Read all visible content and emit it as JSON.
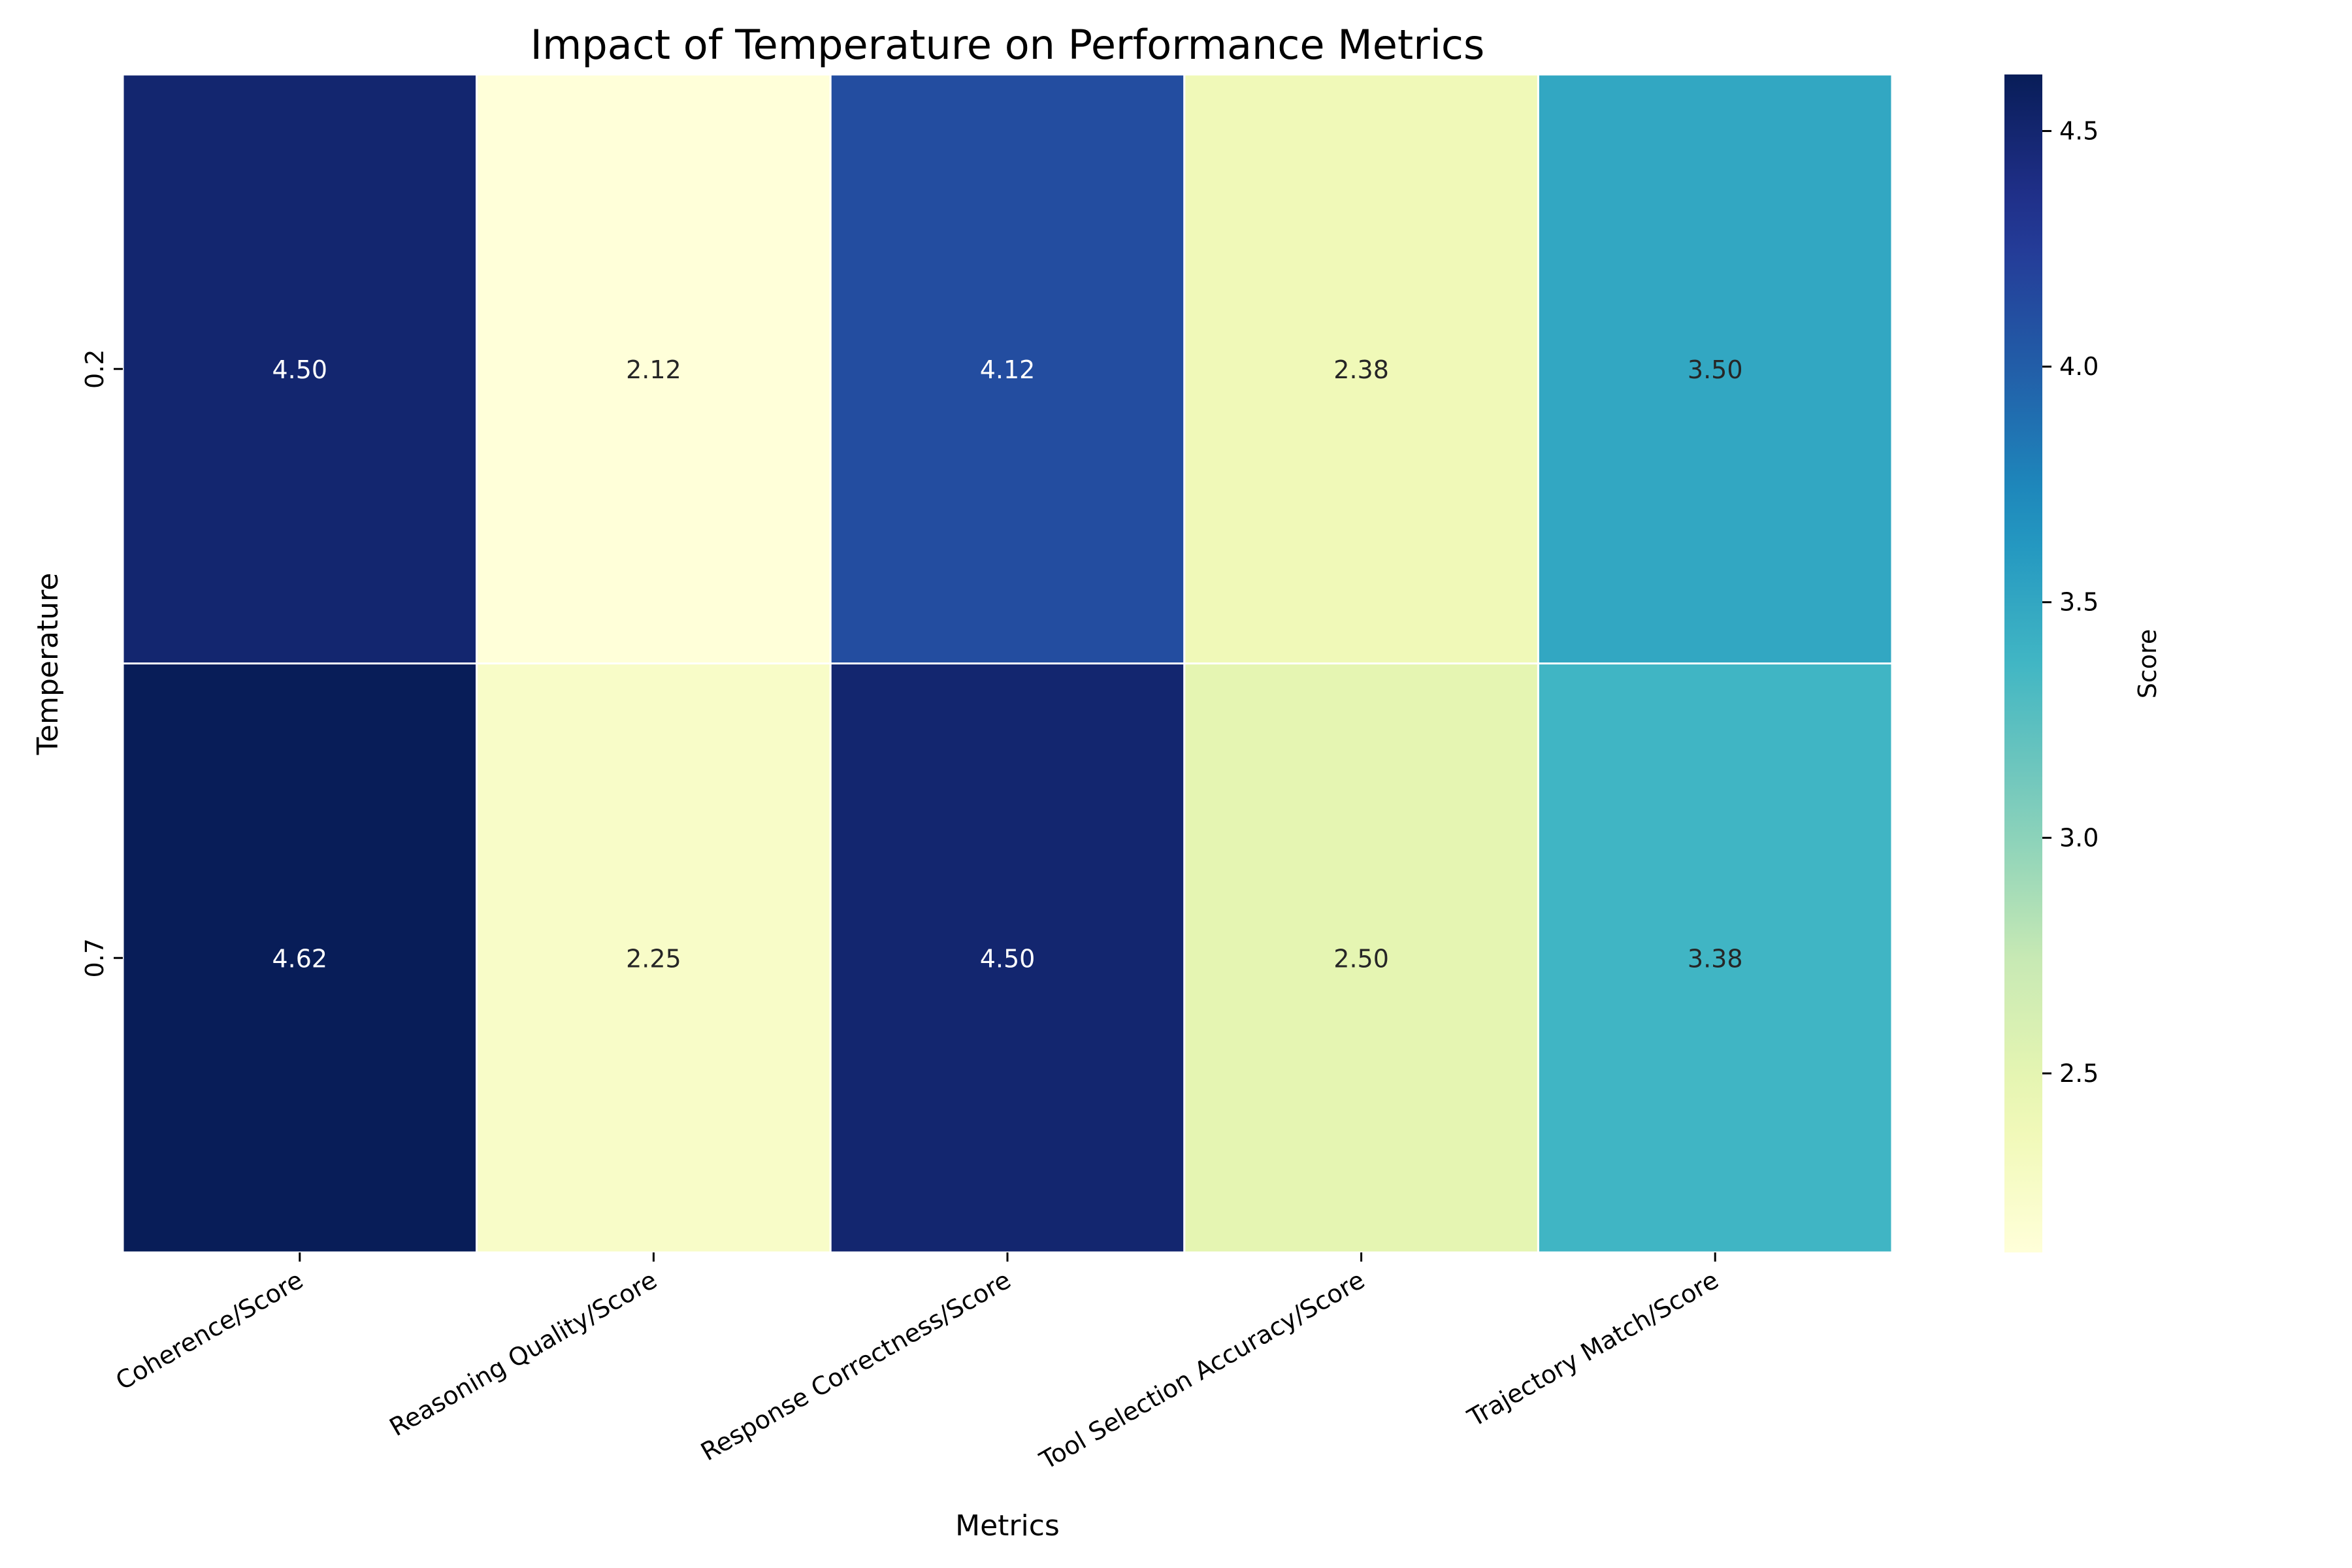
{
  "chart_data": {
    "type": "heatmap",
    "title": "Impact of Temperature on Performance Metrics",
    "xlabel": "Metrics",
    "ylabel": "Temperature",
    "x_categories": [
      "Coherence/Score",
      "Reasoning Quality/Score",
      "Response Correctness/Score",
      "Tool Selection Accuracy/Score",
      "Trajectory Match/Score"
    ],
    "y_categories": [
      "0.2",
      "0.7"
    ],
    "values": [
      [
        4.5,
        2.12,
        4.12,
        2.38,
        3.5
      ],
      [
        4.62,
        2.25,
        4.5,
        2.5,
        3.38
      ]
    ],
    "value_labels": [
      [
        "4.50",
        "2.12",
        "4.12",
        "2.38",
        "3.50"
      ],
      [
        "4.62",
        "2.25",
        "4.50",
        "2.50",
        "3.38"
      ]
    ],
    "colorbar": {
      "label": "Score",
      "range": [
        2.12,
        4.62
      ],
      "ticks": [
        {
          "value": 2.5,
          "label": "2.5"
        },
        {
          "value": 3.0,
          "label": "3.0"
        },
        {
          "value": 3.5,
          "label": "3.5"
        },
        {
          "value": 4.0,
          "label": "4.0"
        },
        {
          "value": 4.5,
          "label": "4.5"
        }
      ],
      "colormap": "YlGnBu"
    },
    "grid": false,
    "cell_border_color": "#ffffff"
  }
}
